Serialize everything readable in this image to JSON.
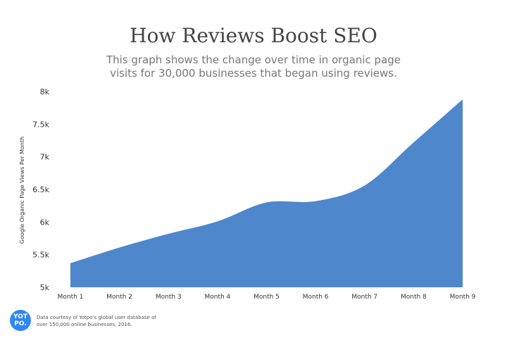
{
  "chart_data": {
    "type": "area",
    "title": "How Reviews Boost SEO",
    "subtitle": "This graph shows the change over time in organic page visits for 30,000 businesses that began using reviews.",
    "xlabel": "",
    "ylabel": "Google Organic Page Views Per Month",
    "categories": [
      "Month 1",
      "Month 2",
      "Month 3",
      "Month 4",
      "Month 5",
      "Month 6",
      "Month 7",
      "Month 8",
      "Month 9"
    ],
    "values": [
      5370,
      5610,
      5820,
      6010,
      6300,
      6320,
      6560,
      7220,
      7880
    ],
    "ylim": [
      5000,
      8000
    ],
    "yticks": [
      5000,
      5500,
      6000,
      6500,
      7000,
      7500,
      8000
    ],
    "ytick_labels": [
      "5k",
      "5.5k",
      "6k",
      "6.5k",
      "7k",
      "7.5k",
      "8k"
    ],
    "grid": false,
    "color": "#4e87cb"
  },
  "logo": {
    "line1": "YOT",
    "line2": "PO."
  },
  "footnote": "Data courtesy of Yotpo's global user database of over 150,000 online businesses, 2016."
}
